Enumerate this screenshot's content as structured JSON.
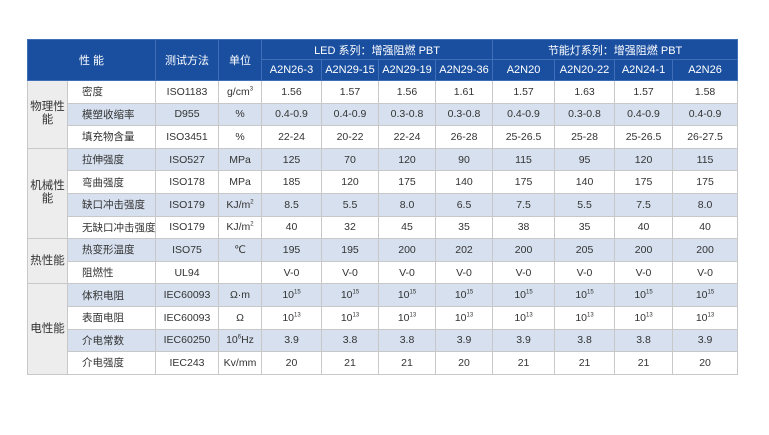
{
  "header": {
    "property": "性 能",
    "method": "测试方法",
    "unit": "单位",
    "led_group": "LED 系列：增强阻燃 PBT",
    "lamp_group": "节能灯系列：增强阻燃 PBT",
    "grades": [
      "A2N26-3",
      "A2N29-15",
      "A2N29-19",
      "A2N29-36",
      "A2N20",
      "A2N20-22",
      "A2N24-1",
      "A2N26"
    ]
  },
  "categories": {
    "physical": "物理性能",
    "mechanical": "机械性能",
    "thermal": "热性能",
    "electrical": "电性能"
  },
  "rows": [
    {
      "name": "密度",
      "method": "ISO1183",
      "unit": "g/cm",
      "unit_sup": "3",
      "values": [
        "1.56",
        "1.57",
        "1.56",
        "1.61",
        "1.57",
        "1.63",
        "1.57",
        "1.58"
      ]
    },
    {
      "name": "模塑收缩率",
      "method": "D955",
      "unit": "%",
      "unit_sup": "",
      "values": [
        "0.4-0.9",
        "0.4-0.9",
        "0.3-0.8",
        "0.3-0.8",
        "0.4-0.9",
        "0.3-0.8",
        "0.4-0.9",
        "0.4-0.9"
      ]
    },
    {
      "name": "填充物含量",
      "method": "ISO3451",
      "unit": "%",
      "unit_sup": "",
      "values": [
        "22-24",
        "20-22",
        "22-24",
        "26-28",
        "25-26.5",
        "25-28",
        "25-26.5",
        "26-27.5"
      ]
    },
    {
      "name": "拉伸强度",
      "method": "ISO527",
      "unit": "MPa",
      "unit_sup": "",
      "values": [
        "125",
        "70",
        "120",
        "90",
        "115",
        "95",
        "120",
        "115"
      ]
    },
    {
      "name": "弯曲强度",
      "method": "ISO178",
      "unit": "MPa",
      "unit_sup": "",
      "values": [
        "185",
        "120",
        "175",
        "140",
        "175",
        "140",
        "175",
        "175"
      ]
    },
    {
      "name": "缺口冲击强度",
      "method": "ISO179",
      "unit": "KJ/m",
      "unit_sup": "2",
      "values": [
        "8.5",
        "5.5",
        "8.0",
        "6.5",
        "7.5",
        "5.5",
        "7.5",
        "8.0"
      ]
    },
    {
      "name": "无缺口冲击强度",
      "method": "ISO179",
      "unit": "KJ/m",
      "unit_sup": "2",
      "values": [
        "40",
        "32",
        "45",
        "35",
        "38",
        "35",
        "40",
        "40"
      ]
    },
    {
      "name": "热变形温度",
      "method": "ISO75",
      "unit": "℃",
      "unit_sup": "",
      "values": [
        "195",
        "195",
        "200",
        "202",
        "200",
        "205",
        "200",
        "200"
      ]
    },
    {
      "name": "阻燃性",
      "method": "UL94",
      "unit": "",
      "unit_sup": "",
      "values": [
        "V-0",
        "V-0",
        "V-0",
        "V-0",
        "V-0",
        "V-0",
        "V-0",
        "V-0"
      ]
    },
    {
      "name": "体积电阻",
      "method": "IEC60093",
      "unit": "Ω·m",
      "unit_sup": "",
      "values": [
        "10",
        "10",
        "10",
        "10",
        "10",
        "10",
        "10",
        "10"
      ],
      "value_sup": "15"
    },
    {
      "name": "表面电阻",
      "method": "IEC60093",
      "unit": "Ω",
      "unit_sup": "",
      "values": [
        "10",
        "10",
        "10",
        "10",
        "10",
        "10",
        "10",
        "10"
      ],
      "value_sup": "13"
    },
    {
      "name": "介电常数",
      "method": "IEC60250",
      "unit": "10",
      "unit_sup": "6",
      "unit_suffix": "Hz",
      "values": [
        "3.9",
        "3.8",
        "3.8",
        "3.9",
        "3.9",
        "3.8",
        "3.8",
        "3.9"
      ]
    },
    {
      "name": "介电强度",
      "method": "IEC243",
      "unit": "Kv/mm",
      "unit_sup": "",
      "values": [
        "20",
        "21",
        "21",
        "20",
        "21",
        "21",
        "21",
        "20"
      ]
    }
  ]
}
